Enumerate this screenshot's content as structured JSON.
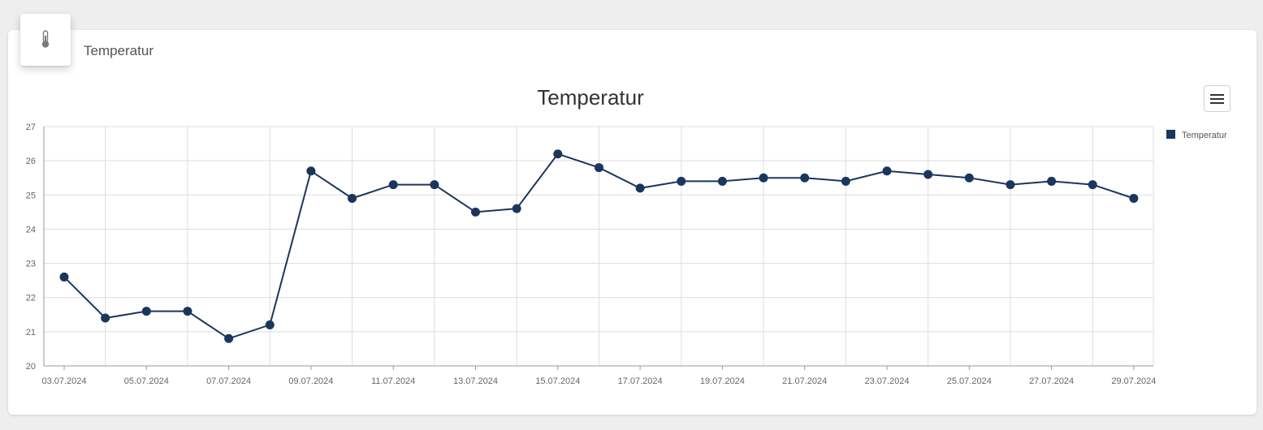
{
  "card": {
    "title": "Temperatur",
    "icon": "thermometer-icon"
  },
  "menu": {
    "icon": "hamburger-menu-icon"
  },
  "colors": {
    "series": "#1b365d",
    "grid": "#dddddd",
    "axis": "#999999"
  },
  "chart_data": {
    "type": "line",
    "title": "Temperatur",
    "xlabel": "",
    "ylabel": "",
    "ylim": [
      20,
      27
    ],
    "y_ticks": [
      20,
      21,
      22,
      23,
      24,
      25,
      26,
      27
    ],
    "x_tick_labels": [
      "03.07.2024",
      "05.07.2024",
      "07.07.2024",
      "09.07.2024",
      "11.07.2024",
      "13.07.2024",
      "15.07.2024",
      "17.07.2024",
      "19.07.2024",
      "21.07.2024",
      "23.07.2024",
      "25.07.2024",
      "27.07.2024",
      "29.07.2024"
    ],
    "grid": true,
    "legend_position": "right-top",
    "series": [
      {
        "name": "Temperatur",
        "x": [
          "03.07.2024",
          "04.07.2024",
          "05.07.2024",
          "06.07.2024",
          "07.07.2024",
          "08.07.2024",
          "09.07.2024",
          "10.07.2024",
          "11.07.2024",
          "12.07.2024",
          "13.07.2024",
          "14.07.2024",
          "15.07.2024",
          "16.07.2024",
          "17.07.2024",
          "18.07.2024",
          "19.07.2024",
          "20.07.2024",
          "21.07.2024",
          "22.07.2024",
          "23.07.2024",
          "24.07.2024",
          "25.07.2024",
          "26.07.2024",
          "27.07.2024",
          "28.07.2024",
          "29.07.2024"
        ],
        "values": [
          22.6,
          21.4,
          21.6,
          21.6,
          20.8,
          21.2,
          25.7,
          24.9,
          25.3,
          25.3,
          24.5,
          24.6,
          26.2,
          25.8,
          25.2,
          25.4,
          25.4,
          25.5,
          25.5,
          25.4,
          25.7,
          25.6,
          25.5,
          25.3,
          25.4,
          25.3,
          24.9
        ]
      }
    ]
  }
}
